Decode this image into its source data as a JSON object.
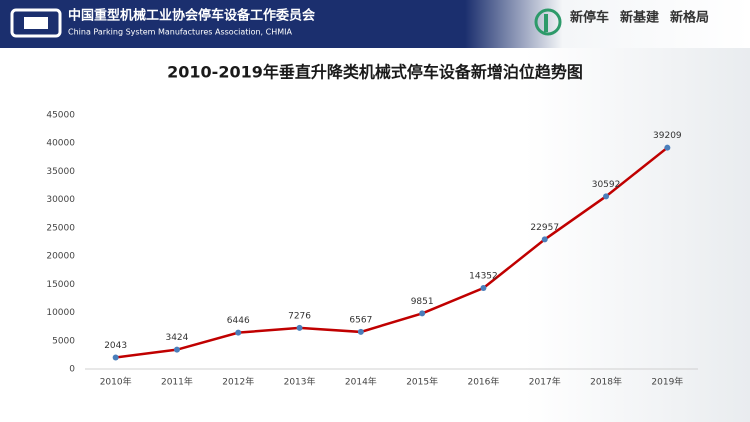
{
  "header": {
    "org_cn": "中国重型机械工业协会停车设备工作委员会",
    "org_en": "China Parking System Manufactures Association, CHMIA",
    "slogans": [
      "新停车",
      "新基建",
      "新格局"
    ]
  },
  "chart_data": {
    "type": "line",
    "title": "2010-2019年垂直升降类机械式停车设备新增泊位趋势图",
    "categories": [
      "2010年",
      "2011年",
      "2012年",
      "2013年",
      "2014年",
      "2015年",
      "2016年",
      "2017年",
      "2018年",
      "2019年"
    ],
    "values": [
      2043,
      3424,
      6446,
      7276,
      6567,
      9851,
      14352,
      22957,
      30592,
      39209
    ],
    "color": "#c00000",
    "marker_color": "#4a7ebb",
    "ylim": [
      0,
      45000
    ],
    "yticks": [
      0,
      5000,
      10000,
      15000,
      20000,
      25000,
      30000,
      35000,
      40000,
      45000
    ],
    "grid": false
  }
}
